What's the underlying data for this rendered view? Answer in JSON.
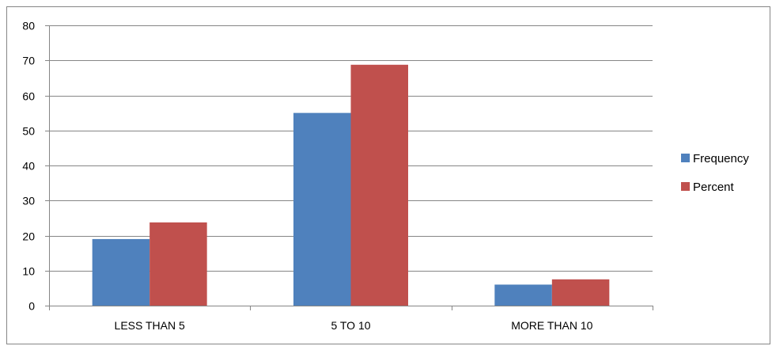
{
  "chart_data": {
    "type": "bar",
    "title": "",
    "xlabel": "",
    "ylabel": "",
    "categories": [
      "LESS THAN 5",
      "5 TO 10",
      "MORE THAN 10"
    ],
    "series": [
      {
        "name": "Frequency",
        "values": [
          19,
          55,
          6
        ],
        "color": "#4F81BD"
      },
      {
        "name": "Percent",
        "values": [
          23.75,
          68.75,
          7.5
        ],
        "color": "#C0504D"
      }
    ],
    "ylim": [
      0,
      80
    ],
    "yticks": [
      "0",
      "10",
      "20",
      "30",
      "40",
      "50",
      "60",
      "70",
      "80"
    ],
    "grid": true,
    "legend_position": "right"
  }
}
